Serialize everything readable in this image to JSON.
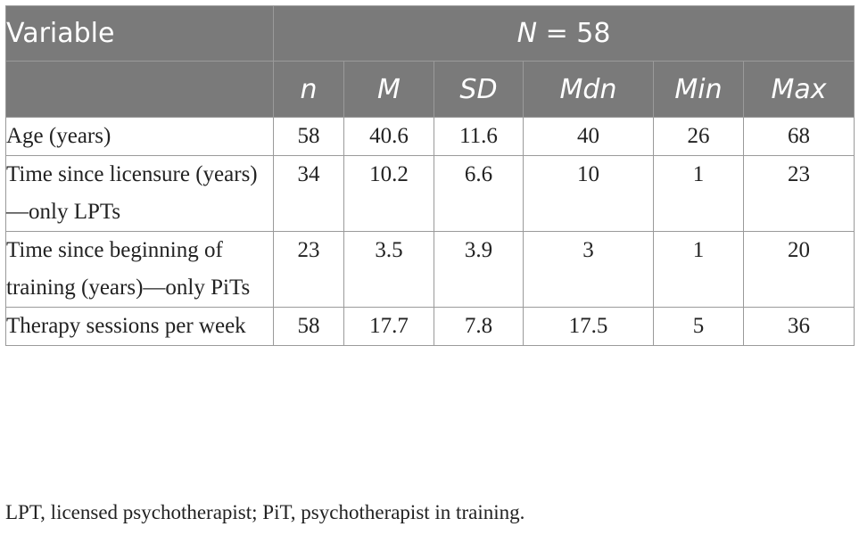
{
  "table": {
    "variable_header": "Variable",
    "n_header": "N = 58",
    "columns": [
      "n",
      "M",
      "SD",
      "Mdn",
      "Min",
      "Max"
    ],
    "rows": [
      {
        "label": "Age (years)",
        "values": [
          "58",
          "40.6",
          "11.6",
          "40",
          "26",
          "68"
        ]
      },
      {
        "label": "Time since licensure (years)—only LPTs",
        "values": [
          "34",
          "10.2",
          "6.6",
          "10",
          "1",
          "23"
        ]
      },
      {
        "label": "Time since beginning of training (years)—only PiTs",
        "values": [
          "23",
          "3.5",
          "3.9",
          "3",
          "1",
          "20"
        ]
      },
      {
        "label": "Therapy sessions per week",
        "values": [
          "58",
          "17.7",
          "7.8",
          "17.5",
          "5",
          "36"
        ]
      }
    ]
  },
  "footnote": "LPT, licensed psychotherapist; PiT, psychotherapist in training."
}
